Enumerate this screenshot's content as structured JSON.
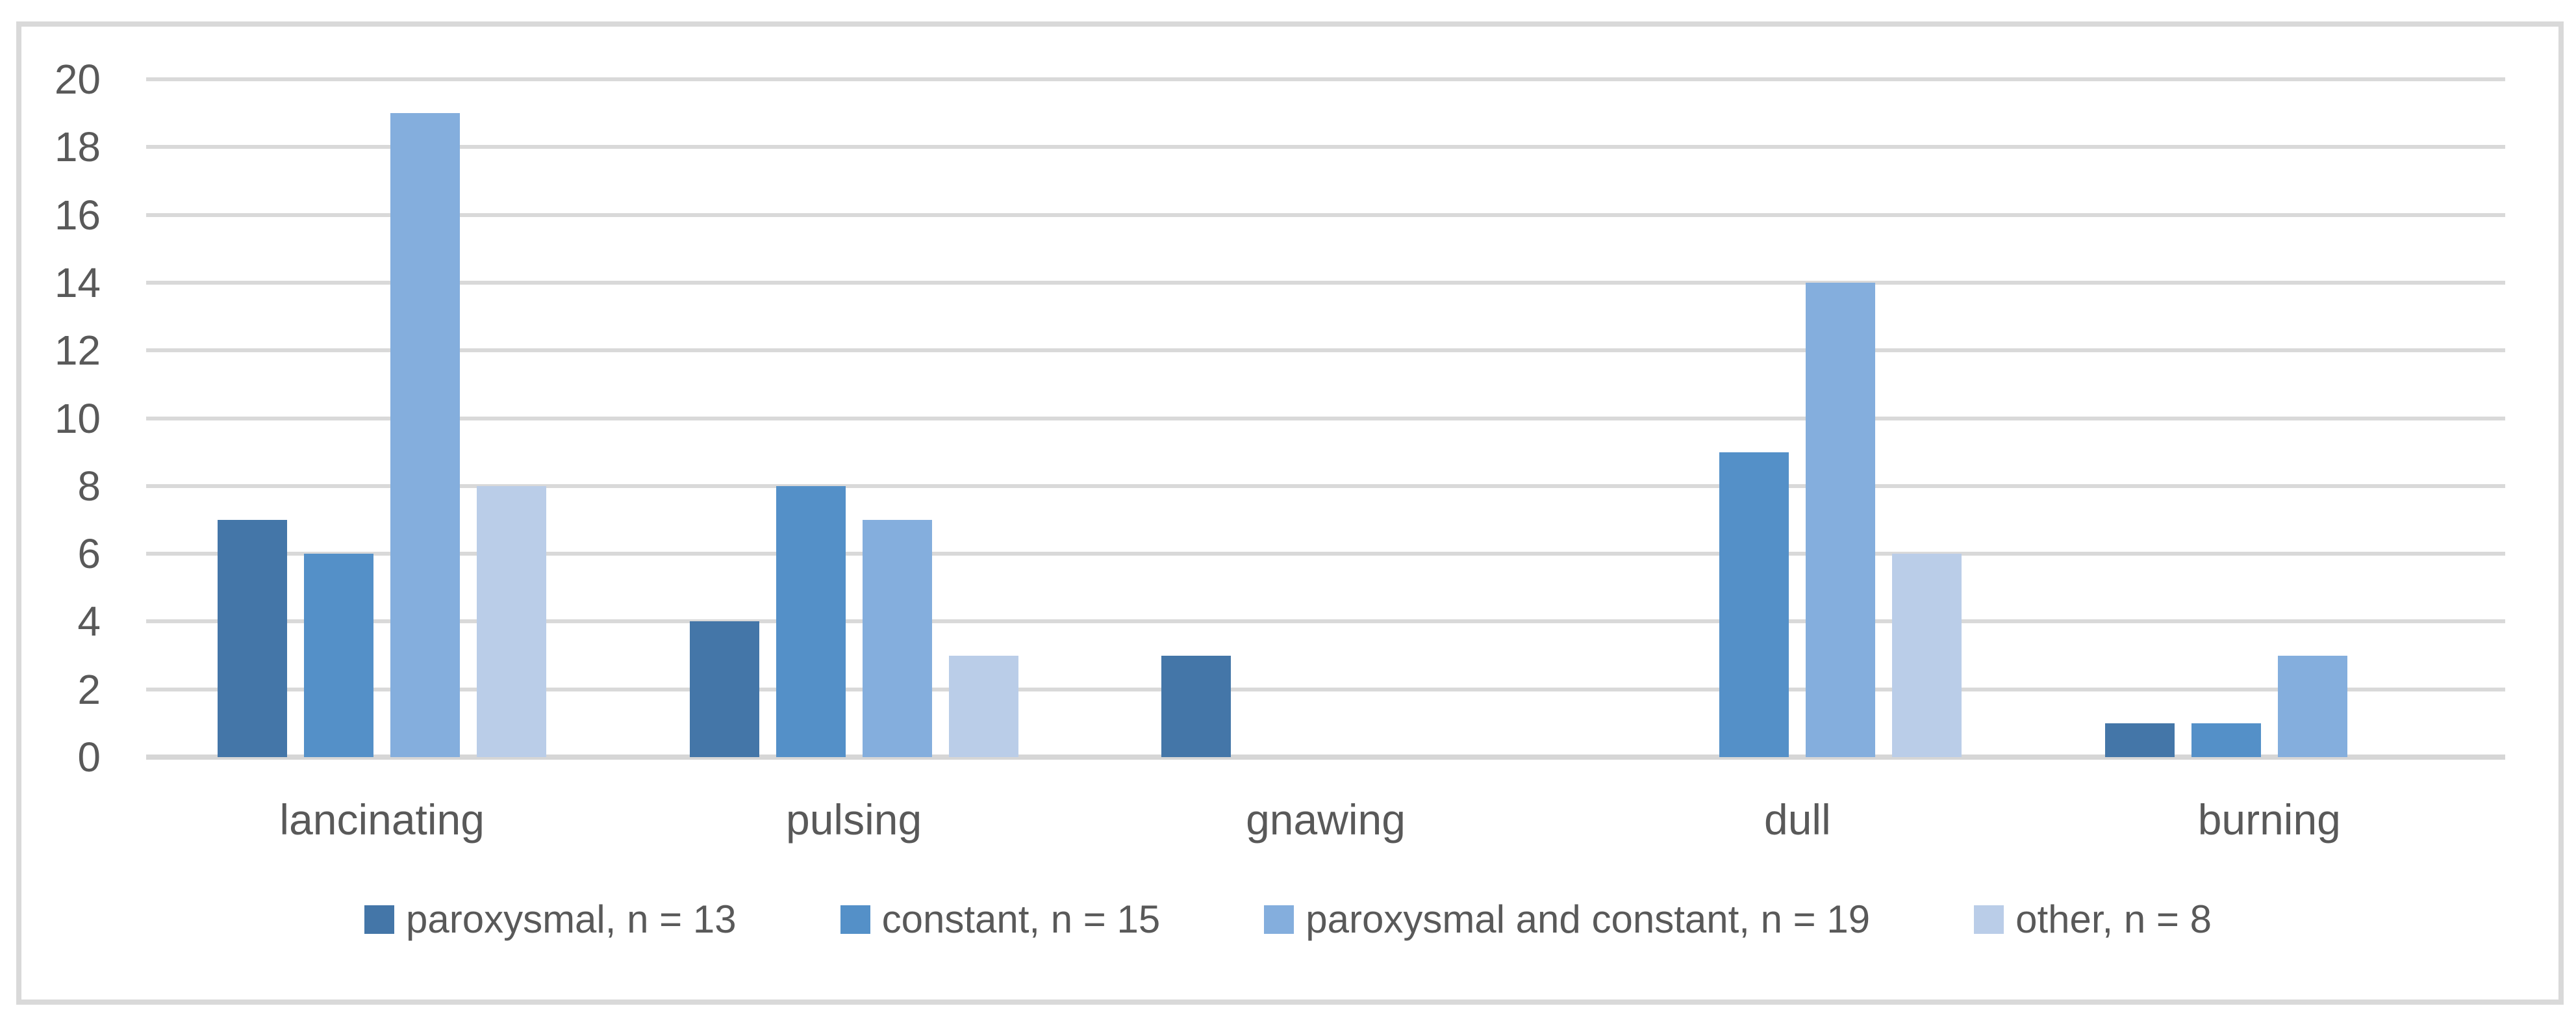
{
  "chart_data": {
    "type": "bar",
    "title": "",
    "xlabel": "",
    "ylabel": "",
    "categories": [
      "lancinating",
      "pulsing",
      "gnawing",
      "dull",
      "burning"
    ],
    "series": [
      {
        "name": "paroxysmal, n = 13",
        "color": "#4476a8",
        "values": [
          7,
          4,
          3,
          0,
          1
        ]
      },
      {
        "name": "constant, n = 15",
        "color": "#5490c8",
        "values": [
          6,
          8,
          0,
          9,
          1
        ]
      },
      {
        "name": "paroxysmal and constant, n = 19",
        "color": "#84aedd",
        "values": [
          19,
          7,
          0,
          14,
          3
        ]
      },
      {
        "name": "other, n = 8",
        "color": "#bacde8",
        "values": [
          8,
          3,
          0,
          6,
          0
        ]
      }
    ],
    "ylim": [
      0,
      20
    ],
    "ytick_step": 2,
    "ytick_labels": [
      "0",
      "2",
      "4",
      "6",
      "8",
      "10",
      "12",
      "14",
      "16",
      "18",
      "20"
    ],
    "grid": true,
    "legend_position": "bottom"
  },
  "colors": {
    "background": "#ffffff",
    "frame_border": "#d9d9d9",
    "gridline": "#d9d9d9",
    "axis_line": "#d6d6d6",
    "text": "#595959"
  }
}
